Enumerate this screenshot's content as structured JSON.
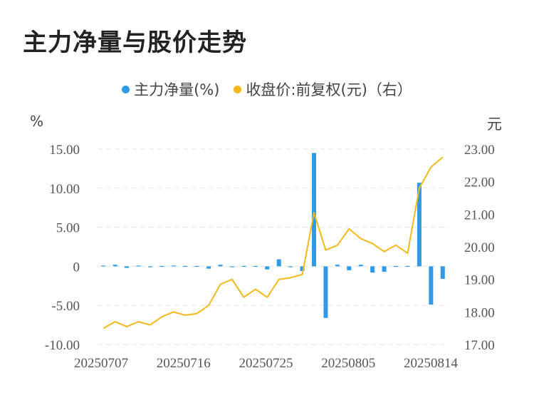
{
  "title": "主力净量与股价走势",
  "colors": {
    "bar": "#2f9be8",
    "line": "#f5b91c",
    "grid": "#e6e6e6"
  },
  "legend": [
    {
      "label": "主力净量(%)",
      "color": "#2f9be8"
    },
    {
      "label": "收盘价:前复权(元)（右）",
      "color": "#f5b91c"
    }
  ],
  "units": {
    "left": "%",
    "right": "元"
  },
  "chart_data": {
    "type": "bar+line",
    "x_tick_labels": [
      "20250707",
      "20250716",
      "20250725",
      "20250805",
      "20250814"
    ],
    "y_left": {
      "ticks": [
        "15.00",
        "10.00",
        "5.00",
        "0",
        "-5.00",
        "-10.00"
      ],
      "range": [
        -10,
        15
      ]
    },
    "y_right": {
      "ticks": [
        "23.00",
        "22.00",
        "21.00",
        "20.00",
        "19.00",
        "18.00",
        "17.00"
      ],
      "range": [
        17,
        23
      ]
    },
    "series": [
      {
        "name": "主力净量(%)",
        "type": "bar",
        "axis": "left",
        "values": [
          0.1,
          0.2,
          -0.2,
          0.1,
          -0.1,
          0.05,
          0.1,
          0.05,
          0.05,
          -0.3,
          0.2,
          -0.1,
          0.05,
          0.05,
          -0.4,
          0.9,
          -0.1,
          -0.6,
          14.5,
          -6.6,
          0.2,
          -0.5,
          0.2,
          -0.8,
          -0.7,
          0.05,
          0.05,
          10.7,
          -4.9,
          -1.6
        ]
      },
      {
        "name": "收盘价:前复权(元)（右）",
        "type": "line",
        "axis": "right",
        "values": [
          17.5,
          17.7,
          17.55,
          17.7,
          17.6,
          17.85,
          18.0,
          17.9,
          17.95,
          18.2,
          18.85,
          19.0,
          18.45,
          18.7,
          18.45,
          19.0,
          19.05,
          19.15,
          21.05,
          19.9,
          20.05,
          20.55,
          20.25,
          20.1,
          19.85,
          20.05,
          19.8,
          21.8,
          22.45,
          22.75
        ]
      }
    ]
  }
}
